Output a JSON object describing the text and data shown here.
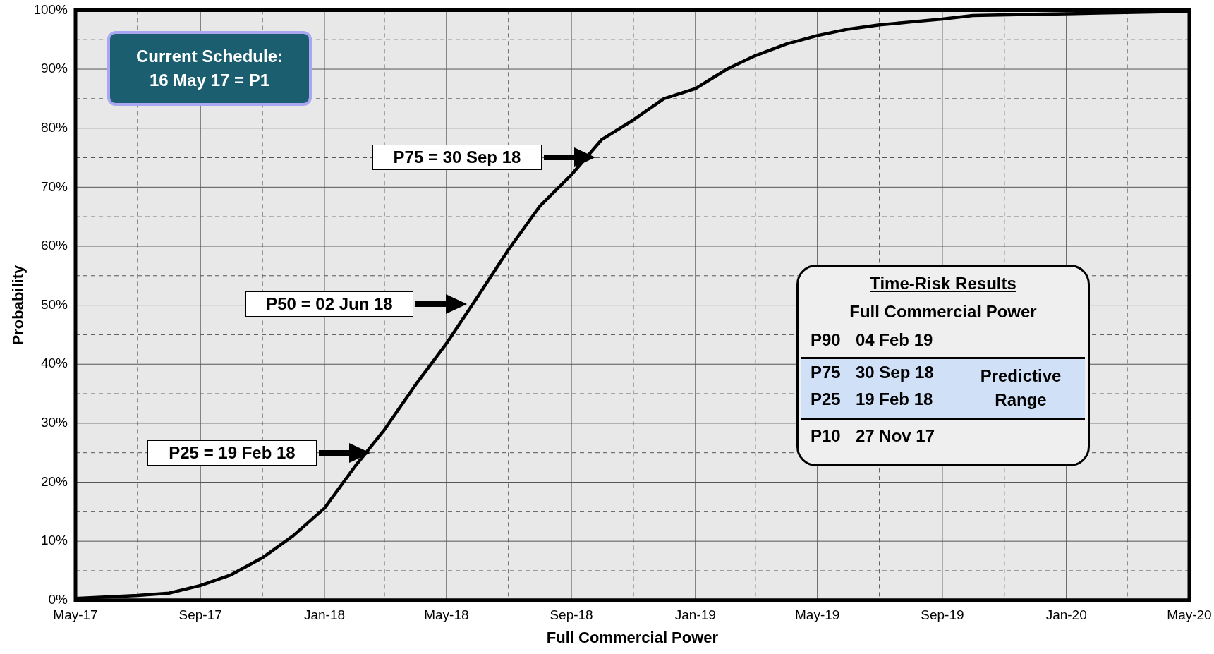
{
  "chart_data": {
    "type": "line",
    "xlabel": "Full Commercial Power",
    "ylabel": "Probability",
    "x": [
      "2017-05-01",
      "2017-07-01",
      "2017-08-01",
      "2017-09-01",
      "2017-10-01",
      "2017-11-01",
      "2017-12-01",
      "2018-01-01",
      "2018-02-01",
      "2018-03-01",
      "2018-04-01",
      "2018-05-01",
      "2018-06-01",
      "2018-07-01",
      "2018-08-01",
      "2018-09-01",
      "2018-10-01",
      "2018-11-01",
      "2018-12-01",
      "2019-01-01",
      "2019-02-01",
      "2019-03-01",
      "2019-04-01",
      "2019-05-01",
      "2019-06-01",
      "2019-07-01",
      "2019-08-01",
      "2019-09-01",
      "2019-10-01",
      "2019-12-01",
      "2020-02-01",
      "2020-05-01"
    ],
    "series": [
      {
        "color": "#000000",
        "values": [
          0.3,
          0.8,
          1.2,
          2.5,
          4.3,
          7.2,
          10.9,
          15.6,
          22.9,
          28.9,
          36.6,
          43.5,
          51.5,
          59.4,
          66.8,
          72.1,
          78.1,
          81.4,
          85.0,
          86.7,
          90.0,
          92.3,
          94.3,
          95.7,
          96.8,
          97.5,
          98.0,
          98.5,
          99.1,
          99.3,
          99.5,
          99.8
        ]
      }
    ],
    "xlim": [
      "2017-05",
      "2020-05"
    ],
    "xticks": [
      {
        "value": "2017-05",
        "label": "May-17"
      },
      {
        "value": "2017-07",
        "label": null
      },
      {
        "value": "2017-09",
        "label": "Sep-17"
      },
      {
        "value": "2017-11",
        "label": null
      },
      {
        "value": "2018-01",
        "label": "Jan-18"
      },
      {
        "value": "2018-03",
        "label": null
      },
      {
        "value": "2018-05",
        "label": "May-18"
      },
      {
        "value": "2018-07",
        "label": null
      },
      {
        "value": "2018-09",
        "label": "Sep-18"
      },
      {
        "value": "2018-11",
        "label": null
      },
      {
        "value": "2019-01",
        "label": "Jan-19"
      },
      {
        "value": "2019-03",
        "label": null
      },
      {
        "value": "2019-05",
        "label": "May-19"
      },
      {
        "value": "2019-07",
        "label": null
      },
      {
        "value": "2019-09",
        "label": "Sep-19"
      },
      {
        "value": "2019-11",
        "label": null
      },
      {
        "value": "2020-01",
        "label": "Jan-20"
      },
      {
        "value": "2020-03",
        "label": null
      },
      {
        "value": "2020-05",
        "label": "May-20"
      }
    ],
    "ylim": [
      0,
      100
    ],
    "yticks": [
      {
        "value": 0,
        "label": "0%"
      },
      {
        "value": 5,
        "label": null
      },
      {
        "value": 10,
        "label": "10%"
      },
      {
        "value": 15,
        "label": null
      },
      {
        "value": 20,
        "label": "20%"
      },
      {
        "value": 25,
        "label": null
      },
      {
        "value": 30,
        "label": "30%"
      },
      {
        "value": 35,
        "label": null
      },
      {
        "value": 40,
        "label": "40%"
      },
      {
        "value": 45,
        "label": null
      },
      {
        "value": 50,
        "label": "50%"
      },
      {
        "value": 55,
        "label": null
      },
      {
        "value": 60,
        "label": "60%"
      },
      {
        "value": 65,
        "label": null
      },
      {
        "value": 70,
        "label": "70%"
      },
      {
        "value": 75,
        "label": null
      },
      {
        "value": 80,
        "label": "80%"
      },
      {
        "value": 85,
        "label": null
      },
      {
        "value": 90,
        "label": "90%"
      },
      {
        "value": 95,
        "label": null
      },
      {
        "value": 100,
        "label": "100%"
      }
    ],
    "grid": true,
    "legend": false,
    "marker": "none",
    "line_style": "solid",
    "annotations": [
      "Current Schedule:\n16 May 17 = P1",
      "P25 = 19 Feb 18",
      "P50 = 02 Jun 18",
      "P75 = 30 Sep 18",
      "Time-Risk Results",
      "Full Commercial Power",
      "P90",
      "04 Feb 19",
      "P75",
      "30 Sep 18",
      "P25",
      "19 Feb 18",
      "Predictive Range",
      "P10",
      "27 Nov 17"
    ]
  }
}
